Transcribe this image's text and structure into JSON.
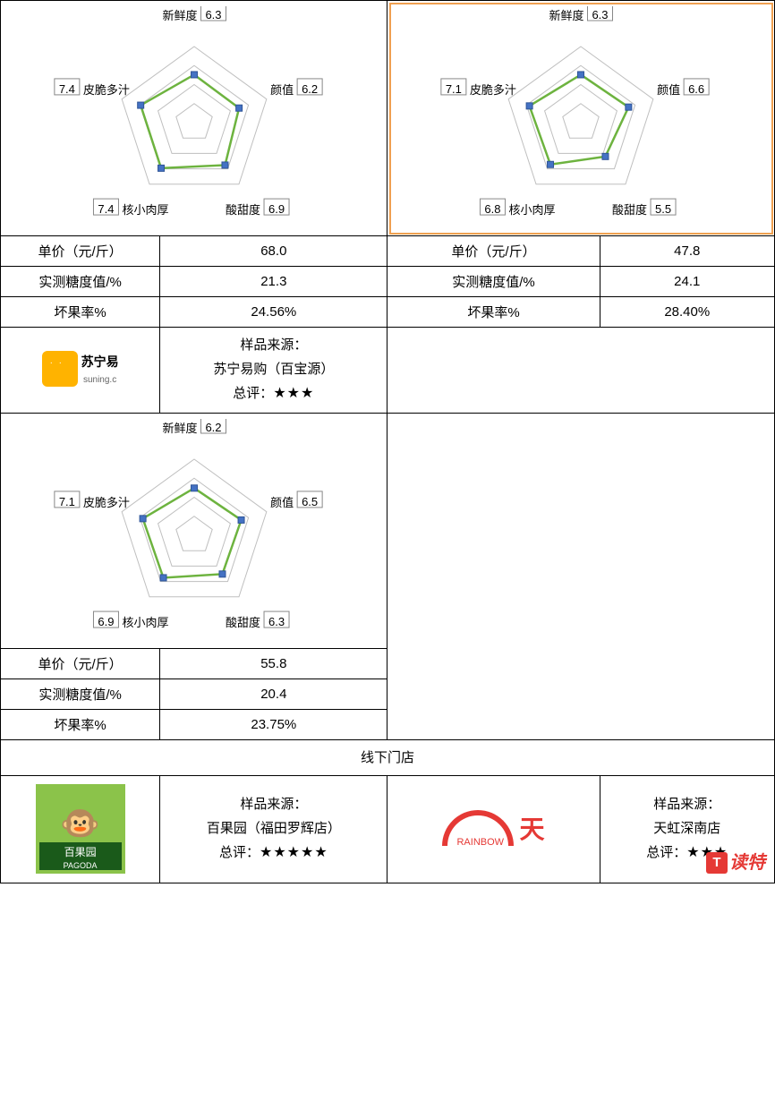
{
  "labels": {
    "price": "单价（元/斤）",
    "sugar": "实测糖度值/%",
    "badrate": "坏果率%",
    "source_prefix": "样品来源：",
    "rating_prefix": "总评：",
    "offline_title": "线下门店"
  },
  "radar_axes": [
    "新鲜度",
    "颜值",
    "酸甜度",
    "核小肉厚",
    "皮脆多汁"
  ],
  "radar_style": {
    "grid_color": "#bfbfbf",
    "line_color": "#6db33f",
    "line_width": 2.5,
    "marker_fill": "#4472c4",
    "marker_stroke": "#2f5597",
    "marker_size": 7,
    "max_value": 10,
    "rings": 4,
    "label_box_stroke": "#888888",
    "label_box_fill": "#ffffff",
    "background_color": "#ffffff"
  },
  "products": [
    {
      "radar_values": [
        6.3,
        6.2,
        6.9,
        7.4,
        7.4
      ],
      "radar_boxed": [
        6.3,
        6.2,
        6.9,
        7.4,
        7.4
      ],
      "price": "68.0",
      "sugar": "21.3",
      "badrate": "24.56%",
      "highlight": false
    },
    {
      "radar_values": [
        6.3,
        6.6,
        5.5,
        6.8,
        7.1
      ],
      "radar_boxed": [
        6.3,
        6.6,
        5.5,
        6.8,
        7.1
      ],
      "price": "47.8",
      "sugar": "24.1",
      "badrate": "28.40%",
      "highlight": true
    },
    {
      "radar_values": [
        6.2,
        6.5,
        6.3,
        6.9,
        7.1
      ],
      "radar_boxed": [
        6.2,
        6.5,
        6.3,
        6.9,
        7.1
      ],
      "price": "55.8",
      "sugar": "20.4",
      "badrate": "23.75%",
      "highlight": false
    }
  ],
  "sources": {
    "suning": {
      "name": "苏宁易购（百宝源）",
      "stars": "★★★",
      "logo_text": "苏宁易",
      "logo_sub": "suning.c"
    },
    "pagoda": {
      "name": "百果园（福田罗辉店）",
      "stars": "★★★★★",
      "logo_text": "百果园",
      "logo_sub": "PAGODA"
    },
    "rainbow": {
      "name": "天虹深南店",
      "stars": "★★★",
      "logo_text": "天",
      "logo_sub": "RAINBOW"
    }
  },
  "watermark": {
    "t": "T",
    "text": "读特"
  }
}
